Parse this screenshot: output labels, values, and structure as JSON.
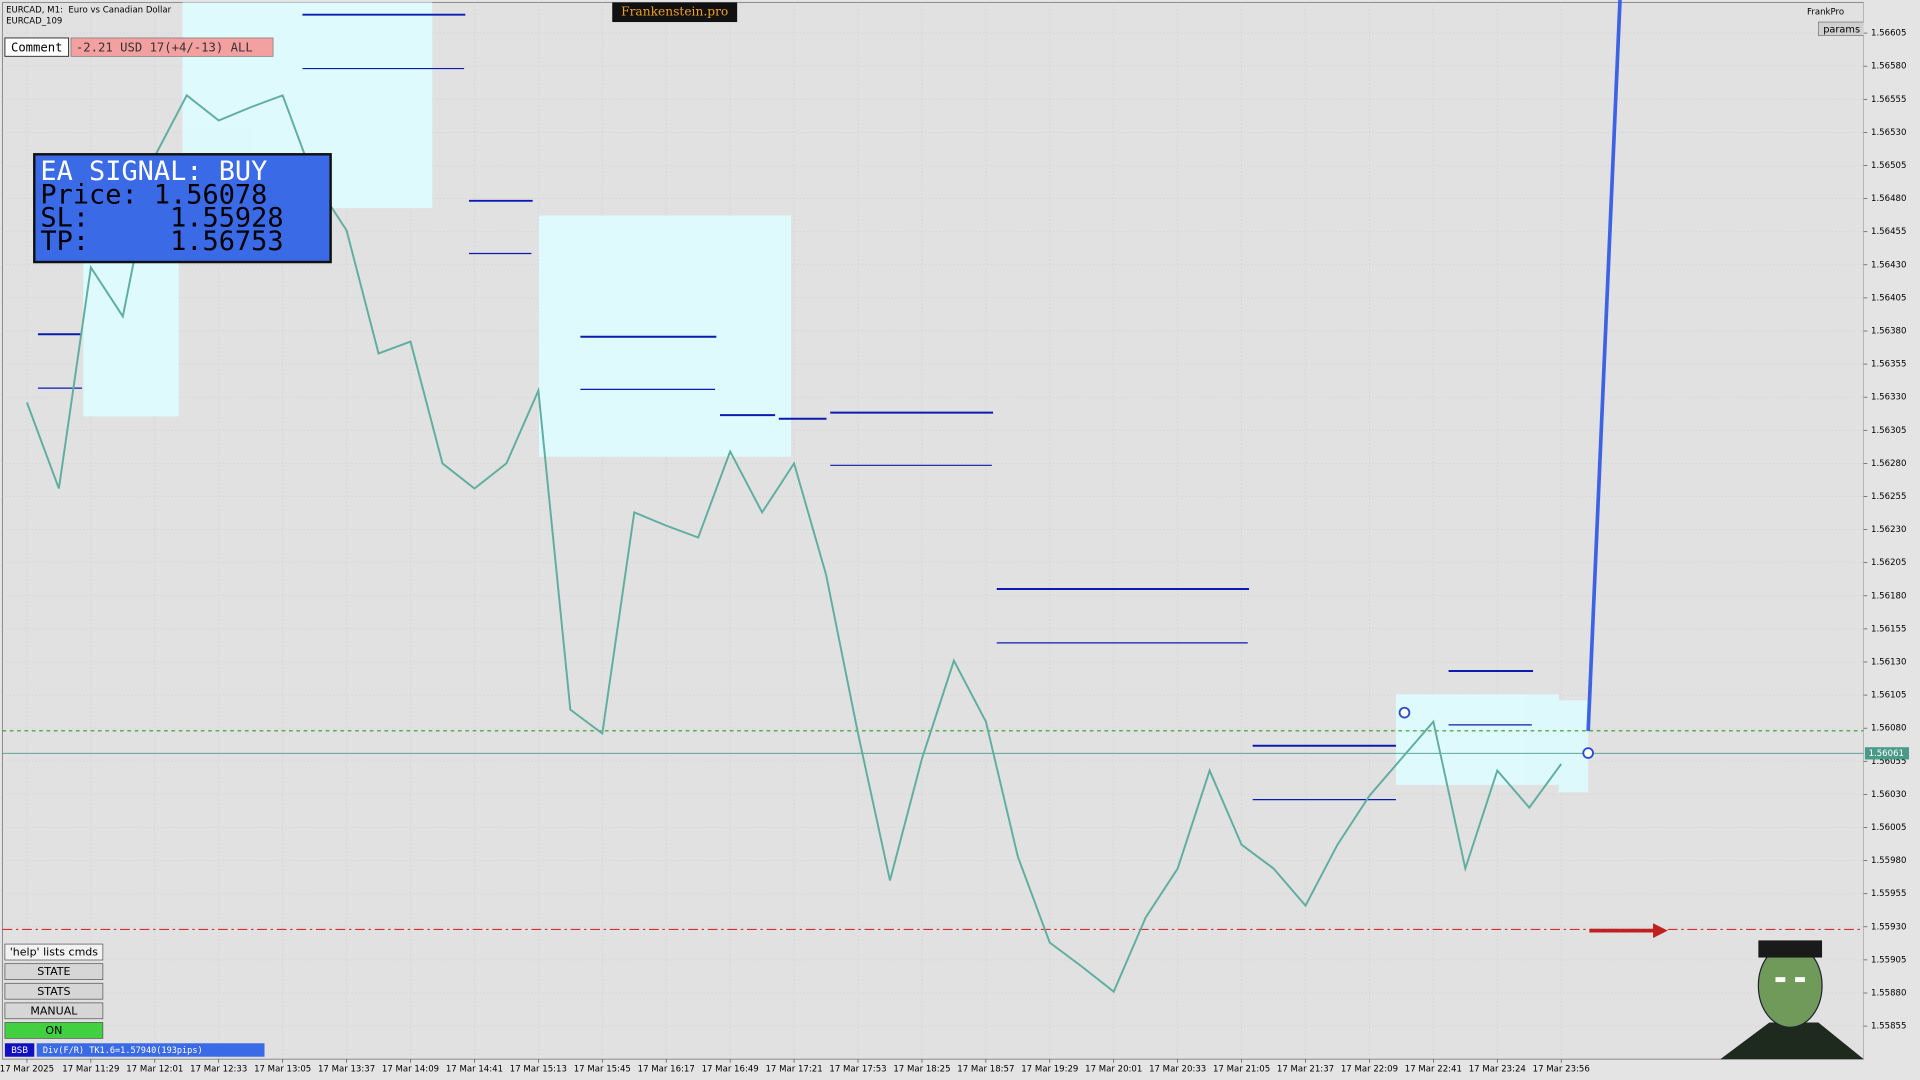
{
  "header": {
    "symbol_line": "EURCAD, M1:  Euro vs Canadian Dollar",
    "account_line": "EURCAD_109",
    "brand": "Frankenstein.pro",
    "indicator_name": "FrankPro",
    "params_button": "params",
    "comment_label": "Comment",
    "comment_value": "-2.21 USD 17(+4/-13) ALL"
  },
  "signal_panel": {
    "title": "EA SIGNAL: BUY",
    "lines": [
      "Price: 1.56078",
      "SL:     1.55928",
      "TP:     1.56753"
    ]
  },
  "buttons": [
    "'help' lists cmds",
    "STATE",
    "STATS",
    "MANUAL",
    "ON"
  ],
  "status_bar": {
    "tag": "BSB",
    "text": "Div(F/R) TK1.6=1.57940(193pips)"
  },
  "chart_data": {
    "type": "line",
    "color": "#5fae9f",
    "categories": [
      "17 Mar 2025",
      null,
      "17 Mar 11:29",
      null,
      "17 Mar 12:01",
      null,
      "17 Mar 12:33",
      null,
      "17 Mar 13:05",
      null,
      "17 Mar 13:37",
      null,
      "17 Mar 14:09",
      null,
      "17 Mar 14:41",
      null,
      "17 Mar 15:13",
      null,
      "17 Mar 15:45",
      null,
      "17 Mar 16:17",
      null,
      "17 Mar 16:49",
      null,
      "17 Mar 17:21",
      null,
      "17 Mar 17:53",
      null,
      "17 Mar 18:25",
      null,
      "17 Mar 18:57",
      null,
      "17 Mar 19:29",
      null,
      "17 Mar 20:01",
      null,
      "17 Mar 20:33",
      null,
      "17 Mar 21:05",
      null,
      "17 Mar 21:37",
      null,
      "17 Mar 22:09",
      null,
      "17 Mar 22:41",
      null,
      "17 Mar 23:24",
      null,
      "17 Mar 23:56"
    ],
    "values": [
      1.56326,
      1.56261,
      1.56428,
      1.56391,
      1.56512,
      1.56558,
      1.56539,
      1.56549,
      1.56558,
      1.56493,
      1.56456,
      1.56363,
      1.56372,
      1.5628,
      1.56261,
      1.5628,
      1.56335,
      1.56094,
      1.56076,
      1.56243,
      1.56233,
      1.56224,
      1.56289,
      1.56243,
      1.5628,
      1.56196,
      1.56076,
      1.55965,
      1.56057,
      1.56131,
      1.56085,
      1.55983,
      1.55918,
      1.559,
      1.55881,
      1.55937,
      1.55974,
      1.56048,
      1.55992,
      1.55974,
      1.55946,
      1.55992,
      1.56029,
      1.56057,
      1.56085,
      1.55974,
      1.56048,
      1.5602,
      1.56053
    ],
    "ylim": [
      1.5583,
      1.5663
    ],
    "yticks": [
      1.55855,
      {
        "value": 1.5588,
        "label": "1.55880"
      },
      1.55905,
      {
        "value": 1.5593,
        "label": "1.55930"
      },
      1.55955,
      {
        "value": 1.5598,
        "label": "1.55980"
      },
      1.56005,
      {
        "value": 1.5603,
        "label": "1.56030"
      },
      1.56055,
      {
        "value": 1.5608,
        "label": "1.56080"
      },
      1.56105,
      {
        "value": 1.5613,
        "label": "1.56130"
      },
      1.56155,
      {
        "value": 1.5618,
        "label": "1.56180"
      },
      1.56205,
      {
        "value": 1.5623,
        "label": "1.56230"
      },
      1.56255,
      {
        "value": 1.5628,
        "label": "1.56280"
      },
      1.56305,
      {
        "value": 1.5633,
        "label": "1.56330"
      },
      1.56355,
      {
        "value": 1.5638,
        "label": "1.56380"
      },
      1.56405,
      {
        "value": 1.5643,
        "label": "1.56430"
      },
      1.56455,
      {
        "value": 1.5648,
        "label": "1.56480"
      },
      1.56505,
      {
        "value": 1.5653,
        "label": "1.56530"
      },
      1.56555,
      {
        "value": 1.5658,
        "label": "1.56580"
      },
      1.56605
    ],
    "grid": true,
    "last_price": 1.56061,
    "hlines": [
      {
        "value": 1.56078,
        "color": "#2e9a2e",
        "dash": "3 3"
      },
      {
        "value": 1.55928,
        "color": "#d23030",
        "dash": "8 3 2 3"
      }
    ]
  }
}
